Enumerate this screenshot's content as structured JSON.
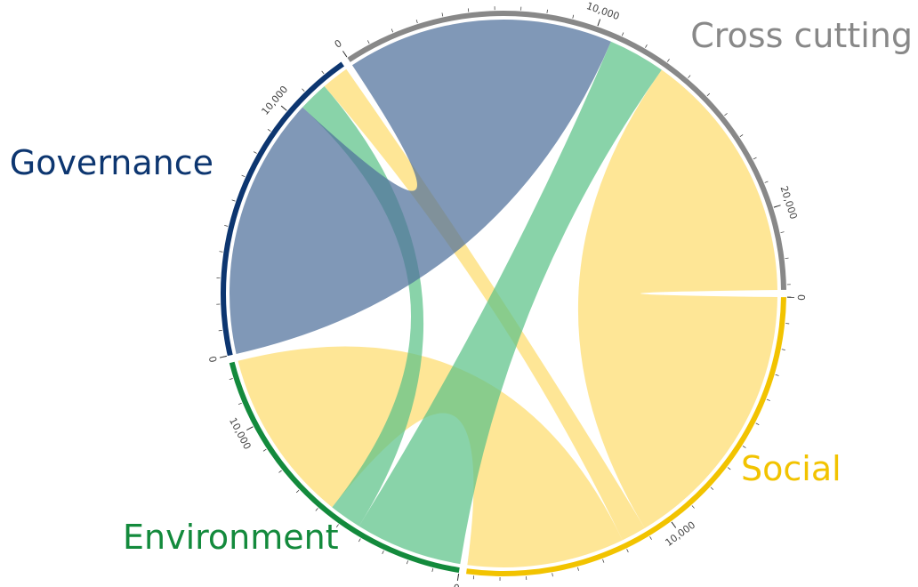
{
  "chart_data": {
    "type": "chord",
    "groups": [
      {
        "name": "Social",
        "color": "#f2c300",
        "ribbon_color": "#fddc6e"
      },
      {
        "name": "Environment",
        "color": "#138a3c",
        "ribbon_color": "#5cc288"
      },
      {
        "name": "Governance",
        "color": "#0d3670",
        "ribbon_color": "#4f709b"
      },
      {
        "name": "Cross cutting",
        "color": "#888888",
        "ribbon_color": "#888888"
      }
    ],
    "matrix": [
      [
        0,
        6300,
        1000,
        11000
      ],
      [
        7000,
        0,
        1300,
        4300
      ],
      [
        1100,
        1200,
        0,
        10500
      ],
      [
        10200,
        2300,
        10700,
        0
      ]
    ],
    "ticks": [
      {
        "value": 0,
        "label": "0"
      },
      {
        "value": 10000,
        "label": "10,000"
      },
      {
        "value": 20000,
        "label": "20,000"
      }
    ],
    "minor_tick_step": 1000
  }
}
